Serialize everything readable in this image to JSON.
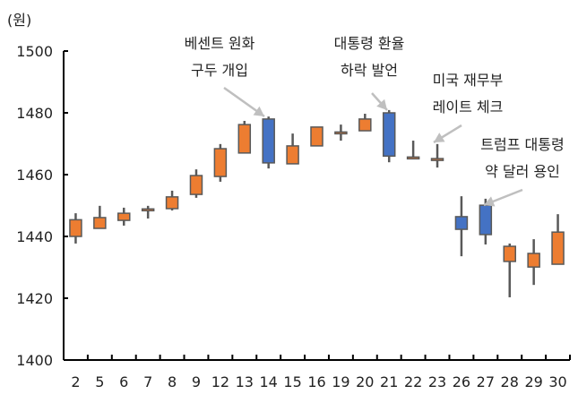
{
  "chart_data": {
    "type": "candlestick",
    "ylabel": "(원)",
    "ylim": [
      1400,
      1500
    ],
    "yticks": [
      1400,
      1420,
      1440,
      1460,
      1480,
      1500
    ],
    "grid": false,
    "categories": [
      "2",
      "5",
      "6",
      "7",
      "8",
      "9",
      "12",
      "13",
      "14",
      "15",
      "16",
      "19",
      "20",
      "21",
      "22",
      "23",
      "26",
      "27",
      "28",
      "29",
      "30"
    ],
    "candles": [
      {
        "x": "2",
        "open": 1440.0,
        "high": 1447.5,
        "low": 1437.7,
        "close": 1445.4
      },
      {
        "x": "5",
        "open": 1442.6,
        "high": 1449.9,
        "low": 1442.6,
        "close": 1446.1
      },
      {
        "x": "6",
        "open": 1445.2,
        "high": 1449.3,
        "low": 1443.5,
        "close": 1447.5
      },
      {
        "x": "7",
        "open": 1448.5,
        "high": 1449.9,
        "low": 1445.8,
        "close": 1448.9
      },
      {
        "x": "8",
        "open": 1449.0,
        "high": 1454.8,
        "low": 1448.4,
        "close": 1452.8
      },
      {
        "x": "9",
        "open": 1453.6,
        "high": 1461.7,
        "low": 1452.5,
        "close": 1459.7
      },
      {
        "x": "12",
        "open": 1459.4,
        "high": 1469.9,
        "low": 1457.7,
        "close": 1468.4
      },
      {
        "x": "13",
        "open": 1467.0,
        "high": 1477.4,
        "low": 1467.0,
        "close": 1476.2
      },
      {
        "x": "14",
        "open": 1478.0,
        "high": 1478.8,
        "low": 1462.0,
        "close": 1463.8
      },
      {
        "x": "15",
        "open": 1463.5,
        "high": 1473.3,
        "low": 1463.5,
        "close": 1469.3
      },
      {
        "x": "16",
        "open": 1469.3,
        "high": 1475.4,
        "low": 1469.3,
        "close": 1475.4
      },
      {
        "x": "19",
        "open": 1473.4,
        "high": 1476.2,
        "low": 1471.0,
        "close": 1473.8
      },
      {
        "x": "20",
        "open": 1474.2,
        "high": 1479.7,
        "low": 1474.2,
        "close": 1478.0
      },
      {
        "x": "21",
        "open": 1480.0,
        "high": 1480.9,
        "low": 1464.0,
        "close": 1466.0
      },
      {
        "x": "22",
        "open": 1465.3,
        "high": 1471.0,
        "low": 1465.0,
        "close": 1465.7
      },
      {
        "x": "23",
        "open": 1464.6,
        "high": 1469.9,
        "low": 1462.3,
        "close": 1465.2
      },
      {
        "x": "26",
        "open": 1446.4,
        "high": 1453.0,
        "low": 1433.6,
        "close": 1442.3
      },
      {
        "x": "27",
        "open": 1450.1,
        "high": 1452.2,
        "low": 1437.4,
        "close": 1440.6
      },
      {
        "x": "28",
        "open": 1431.9,
        "high": 1437.7,
        "low": 1420.3,
        "close": 1436.8
      },
      {
        "x": "29",
        "open": 1430.1,
        "high": 1439.1,
        "low": 1424.3,
        "close": 1434.5
      },
      {
        "x": "30",
        "open": 1431.0,
        "high": 1447.2,
        "low": 1431.0,
        "close": 1441.4
      }
    ],
    "colors": {
      "up": "#ED7D31",
      "down": "#4472C4",
      "outline": "#595959",
      "arrow": "#BFBFBF"
    },
    "annotations": [
      {
        "lines": [
          "베센트 원화",
          "구두 개입"
        ],
        "target": "14"
      },
      {
        "lines": [
          "대통령 환율",
          "하락 발언"
        ],
        "target": "21"
      },
      {
        "lines": [
          "미국 재무부",
          "레이트 체크"
        ],
        "target": "23"
      },
      {
        "lines": [
          "트럼프 대통령",
          "약 달러 용인"
        ],
        "target": "27"
      }
    ]
  }
}
